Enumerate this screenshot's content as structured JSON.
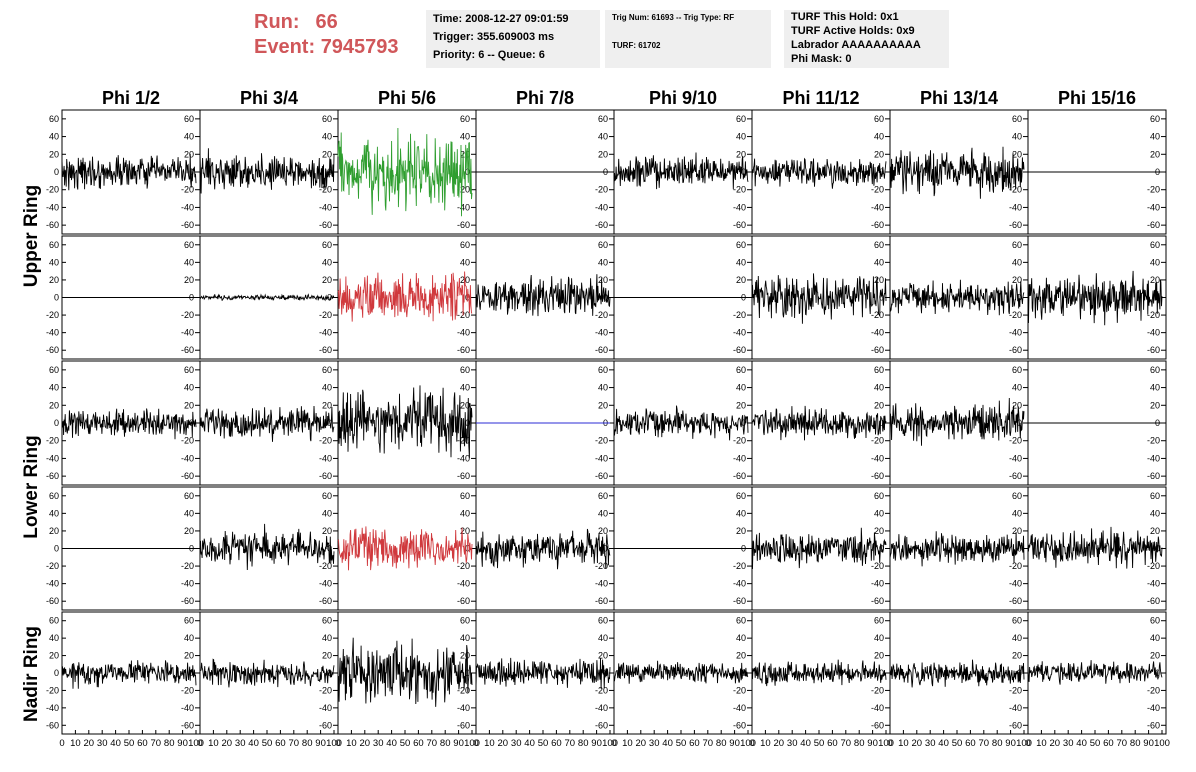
{
  "header": {
    "run_label": "Run:",
    "run_value": "66",
    "event_label": "Event:",
    "event_value": "7945793"
  },
  "info_time": {
    "time": "Time: 2008-12-27 09:01:59",
    "trigger": "Trigger: 355.609003 ms",
    "priority": "Priority: 6 -- Queue: 6"
  },
  "info_trig": {
    "trig": "Trig Num: 61693 -- Trig Type: RF",
    "turf": "TURF: 61702"
  },
  "info_turf": {
    "this_hold": "TURF This Hold: 0x1",
    "active_holds": "TURF Active Holds: 0x9",
    "labrador": "Labrador AAAAAAAAAA",
    "phi_mask": "Phi Mask: 0"
  },
  "chart_data": {
    "type": "line",
    "columns": [
      "Phi 1/2",
      "Phi 3/4",
      "Phi 5/6",
      "Phi 7/8",
      "Phi 9/10",
      "Phi 11/12",
      "Phi 13/14",
      "Phi 15/16"
    ],
    "row_groups": [
      "Upper Ring",
      "Lower Ring",
      "Nadir Ring"
    ],
    "y_ticks": [
      -60,
      -40,
      -20,
      0,
      20,
      40,
      60
    ],
    "ylim": [
      -70,
      70
    ],
    "x_ticks": [
      0,
      10,
      20,
      30,
      40,
      50,
      60,
      70,
      80,
      90,
      100
    ],
    "x_tick_labels": [
      "0",
      "10",
      "20",
      "30",
      "40",
      "50",
      "60",
      "70",
      "80",
      "90",
      "100"
    ],
    "xlim": [
      0,
      100
    ],
    "samples": 256,
    "colors": {
      "normal": "#000000",
      "trigger": "#2f9e2f",
      "phi_trigger": "#d0393d",
      "masked": "#2b2bd4"
    },
    "amplitudes": [
      [
        12,
        14,
        28,
        0,
        12,
        10,
        16,
        0
      ],
      [
        0,
        2,
        18,
        15,
        0,
        16,
        12,
        18
      ],
      [
        10,
        12,
        25,
        0,
        11,
        12,
        14,
        0
      ],
      [
        0,
        14,
        15,
        14,
        0,
        13,
        11,
        13
      ],
      [
        9,
        9,
        22,
        10,
        8,
        9,
        9,
        8
      ]
    ],
    "trace_colors": [
      [
        "normal",
        "normal",
        "trigger",
        "normal",
        "normal",
        "normal",
        "normal",
        "normal"
      ],
      [
        "normal",
        "normal",
        "phi_trigger",
        "normal",
        "normal",
        "normal",
        "normal",
        "normal"
      ],
      [
        "normal",
        "normal",
        "normal",
        "masked",
        "normal",
        "normal",
        "normal",
        "normal"
      ],
      [
        "normal",
        "normal",
        "phi_trigger",
        "normal",
        "normal",
        "normal",
        "normal",
        "normal"
      ],
      [
        "normal",
        "normal",
        "normal",
        "normal",
        "normal",
        "normal",
        "normal",
        "normal"
      ]
    ]
  }
}
